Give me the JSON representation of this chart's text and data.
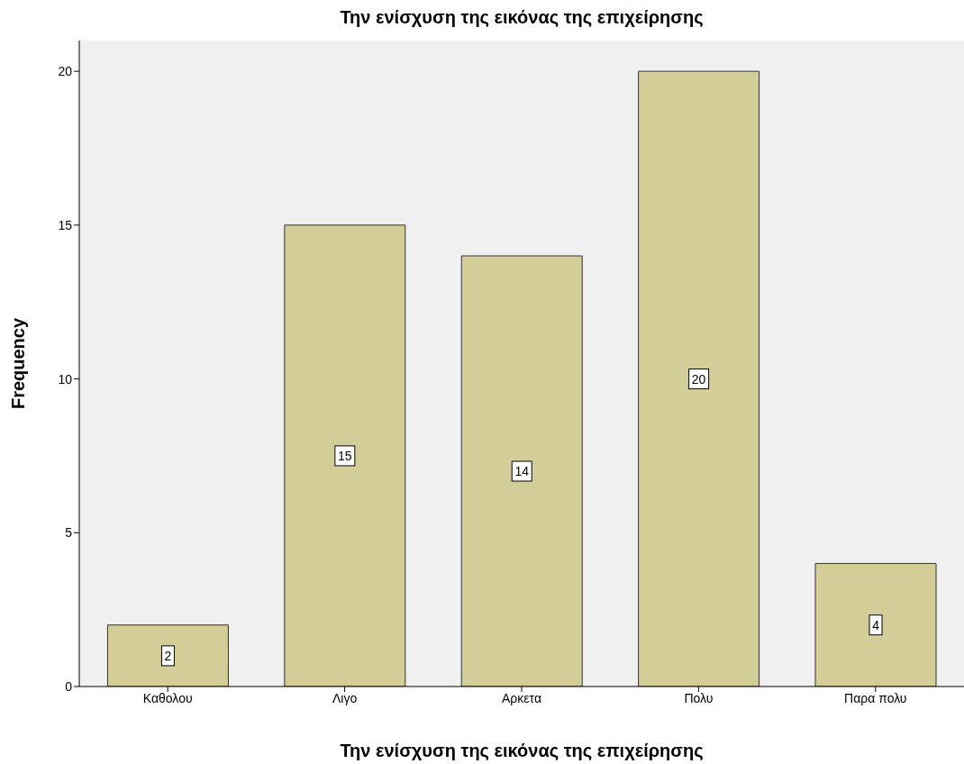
{
  "chart_data": {
    "type": "bar",
    "title": "Την ενίσχυση της εικόνας της επιχείρησης",
    "xlabel": "Την ενίσχυση της εικόνας της επιχείρησης",
    "ylabel": "Frequency",
    "categories": [
      "Καθολου",
      "Λιγο",
      "Αρκετα",
      "Πολυ",
      "Παρα πολυ"
    ],
    "values": [
      2,
      15,
      14,
      20,
      4
    ],
    "color": "#d3ce97",
    "ylim": [
      0,
      21
    ],
    "yticks": [
      0,
      5,
      10,
      15,
      20
    ],
    "grid": false,
    "data_labels": true
  }
}
